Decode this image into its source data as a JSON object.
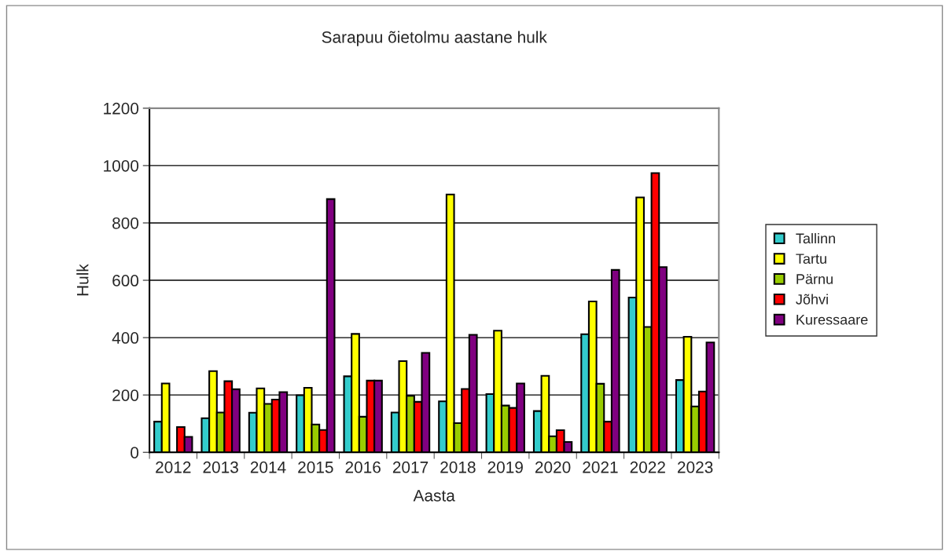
{
  "chart_data": {
    "type": "bar",
    "title": "Sarapuu õietolmu aastane hulk",
    "xlabel": "Aasta",
    "ylabel": "Hulk",
    "categories": [
      "2012",
      "2013",
      "2014",
      "2015",
      "2016",
      "2017",
      "2018",
      "2019",
      "2020",
      "2021",
      "2022",
      "2023"
    ],
    "series": [
      {
        "name": "Tallinn",
        "color": "#33cccc",
        "values": [
          107,
          119,
          138,
          199,
          265,
          139,
          178,
          203,
          144,
          412,
          540,
          252
        ]
      },
      {
        "name": "Tartu",
        "color": "#ffff00",
        "values": [
          240,
          283,
          223,
          225,
          413,
          318,
          899,
          424,
          267,
          526,
          889,
          403
        ]
      },
      {
        "name": "Pärnu",
        "color": "#99cc00",
        "values": [
          null,
          139,
          169,
          97,
          124,
          197,
          102,
          163,
          56,
          239,
          437,
          160
        ]
      },
      {
        "name": "Jõhvi",
        "color": "#ff0000",
        "values": [
          88,
          248,
          184,
          78,
          250,
          176,
          221,
          155,
          77,
          107,
          974,
          212
        ]
      },
      {
        "name": "Kuressaare",
        "color": "#800080",
        "values": [
          54,
          220,
          210,
          883,
          250,
          347,
          410,
          240,
          36,
          636,
          646,
          383
        ]
      }
    ],
    "ylim": [
      0,
      1200
    ],
    "yticks": [
      0,
      200,
      400,
      600,
      800,
      1000,
      1200
    ],
    "grid": "y",
    "legend": "right"
  }
}
